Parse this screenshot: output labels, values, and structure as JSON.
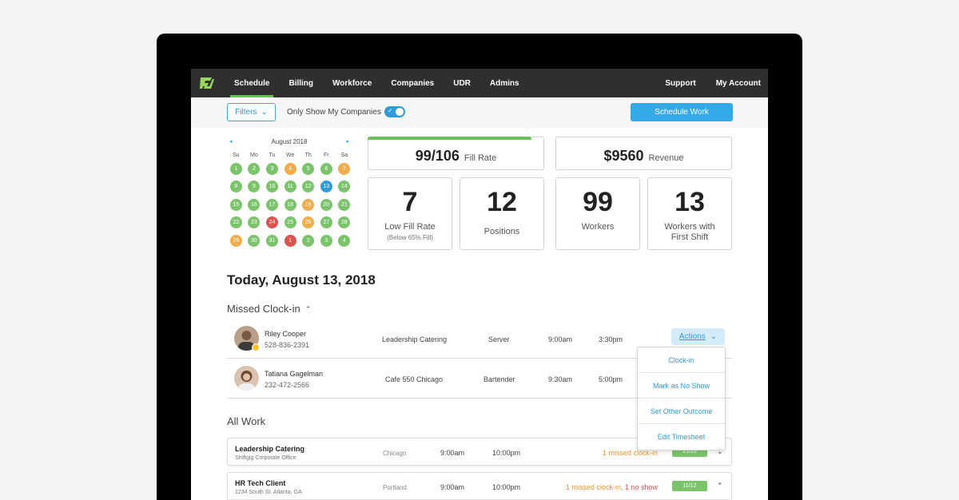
{
  "nav": {
    "items": [
      {
        "label": "Schedule",
        "active": true
      },
      {
        "label": "Billing"
      },
      {
        "label": "Workforce"
      },
      {
        "label": "Companies"
      },
      {
        "label": "UDR"
      },
      {
        "label": "Admins"
      }
    ],
    "support": "Support",
    "account": "My Account"
  },
  "toolbar": {
    "filters": "Filters",
    "toggle_label": "Only Show My Companies",
    "schedule_work": "Schedule Work"
  },
  "calendar": {
    "month": "August 2018",
    "weekdays": [
      "Su",
      "Mo",
      "Tu",
      "We",
      "Th",
      "Fr",
      "Sa"
    ],
    "days": [
      {
        "d": "1",
        "s": "g"
      },
      {
        "d": "2",
        "s": "g"
      },
      {
        "d": "3",
        "s": "g"
      },
      {
        "d": "4",
        "s": "o"
      },
      {
        "d": "5",
        "s": "g"
      },
      {
        "d": "6",
        "s": "g"
      },
      {
        "d": "7",
        "s": "o"
      },
      {
        "d": "8",
        "s": "g"
      },
      {
        "d": "9",
        "s": "g"
      },
      {
        "d": "10",
        "s": "g"
      },
      {
        "d": "11",
        "s": "g"
      },
      {
        "d": "12",
        "s": "g"
      },
      {
        "d": "13",
        "s": "b"
      },
      {
        "d": "14",
        "s": "g"
      },
      {
        "d": "15",
        "s": "g"
      },
      {
        "d": "16",
        "s": "g"
      },
      {
        "d": "17",
        "s": "g"
      },
      {
        "d": "18",
        "s": "g"
      },
      {
        "d": "19",
        "s": "o"
      },
      {
        "d": "20",
        "s": "g"
      },
      {
        "d": "21",
        "s": "g"
      },
      {
        "d": "22",
        "s": "g"
      },
      {
        "d": "23",
        "s": "g"
      },
      {
        "d": "24",
        "s": "r"
      },
      {
        "d": "25",
        "s": "g"
      },
      {
        "d": "26",
        "s": "o"
      },
      {
        "d": "27",
        "s": "g"
      },
      {
        "d": "28",
        "s": "g"
      },
      {
        "d": "29",
        "s": "o"
      },
      {
        "d": "30",
        "s": "g"
      },
      {
        "d": "31",
        "s": "g"
      },
      {
        "d": "1",
        "s": "r"
      },
      {
        "d": "2",
        "s": "g"
      },
      {
        "d": "3",
        "s": "g"
      },
      {
        "d": "4",
        "s": "g"
      }
    ],
    "colors": {
      "g": "#7cc46c",
      "o": "#f0ad4e",
      "r": "#d9534f",
      "b": "#2f9bd8"
    }
  },
  "stats": {
    "fill_rate": {
      "value": "99/106",
      "label": "Fill Rate",
      "progress": 0.934
    },
    "revenue": {
      "value": "$9560",
      "label": "Revenue"
    },
    "low_fill": {
      "value": "7",
      "label": "Low Fill Rate",
      "sub": "(Below 65% Fill)"
    },
    "positions": {
      "value": "12",
      "label": "Positions"
    },
    "workers": {
      "value": "99",
      "label": "Workers"
    },
    "first_shift": {
      "value": "13",
      "label": "Workers with First Shift"
    }
  },
  "today_title": "Today, August 13, 2018",
  "missed": {
    "title": "Missed Clock-in",
    "rows": [
      {
        "name": "Riley Cooper",
        "phone": "528-836-2391",
        "company": "Leadership Catering",
        "role": "Server",
        "start": "9:00am",
        "end": "3:30pm"
      },
      {
        "name": "Tatiana Gagelman",
        "phone": "232-472-2566",
        "company": "Cafe 550 Chicago",
        "role": "Bartender",
        "start": "9:30am",
        "end": "5:00pm"
      }
    ],
    "actions_label": "Actions"
  },
  "menu": [
    "Clock-in",
    "Mark as No Show",
    "Set Other Outcome",
    "Edit Timesheet"
  ],
  "all_work": {
    "title": "All Work",
    "rows": [
      {
        "name": "Leadership Catering",
        "sub": "Shiftgig Corporate Office",
        "city": "Chicago",
        "start": "9:00am",
        "end": "10:00pm",
        "note": "1 missed clock-in",
        "note_red": "",
        "badge": "21/25",
        "chev": "⌄"
      },
      {
        "name": "HR Tech Client",
        "sub": "1234 South St. Atlanta, GA",
        "city": "Portland",
        "start": "9:00am",
        "end": "10:00pm",
        "note": "1 missed clock-in, ",
        "note_red": "1 no show",
        "badge": "11/12",
        "chev": "⌃"
      }
    ]
  }
}
